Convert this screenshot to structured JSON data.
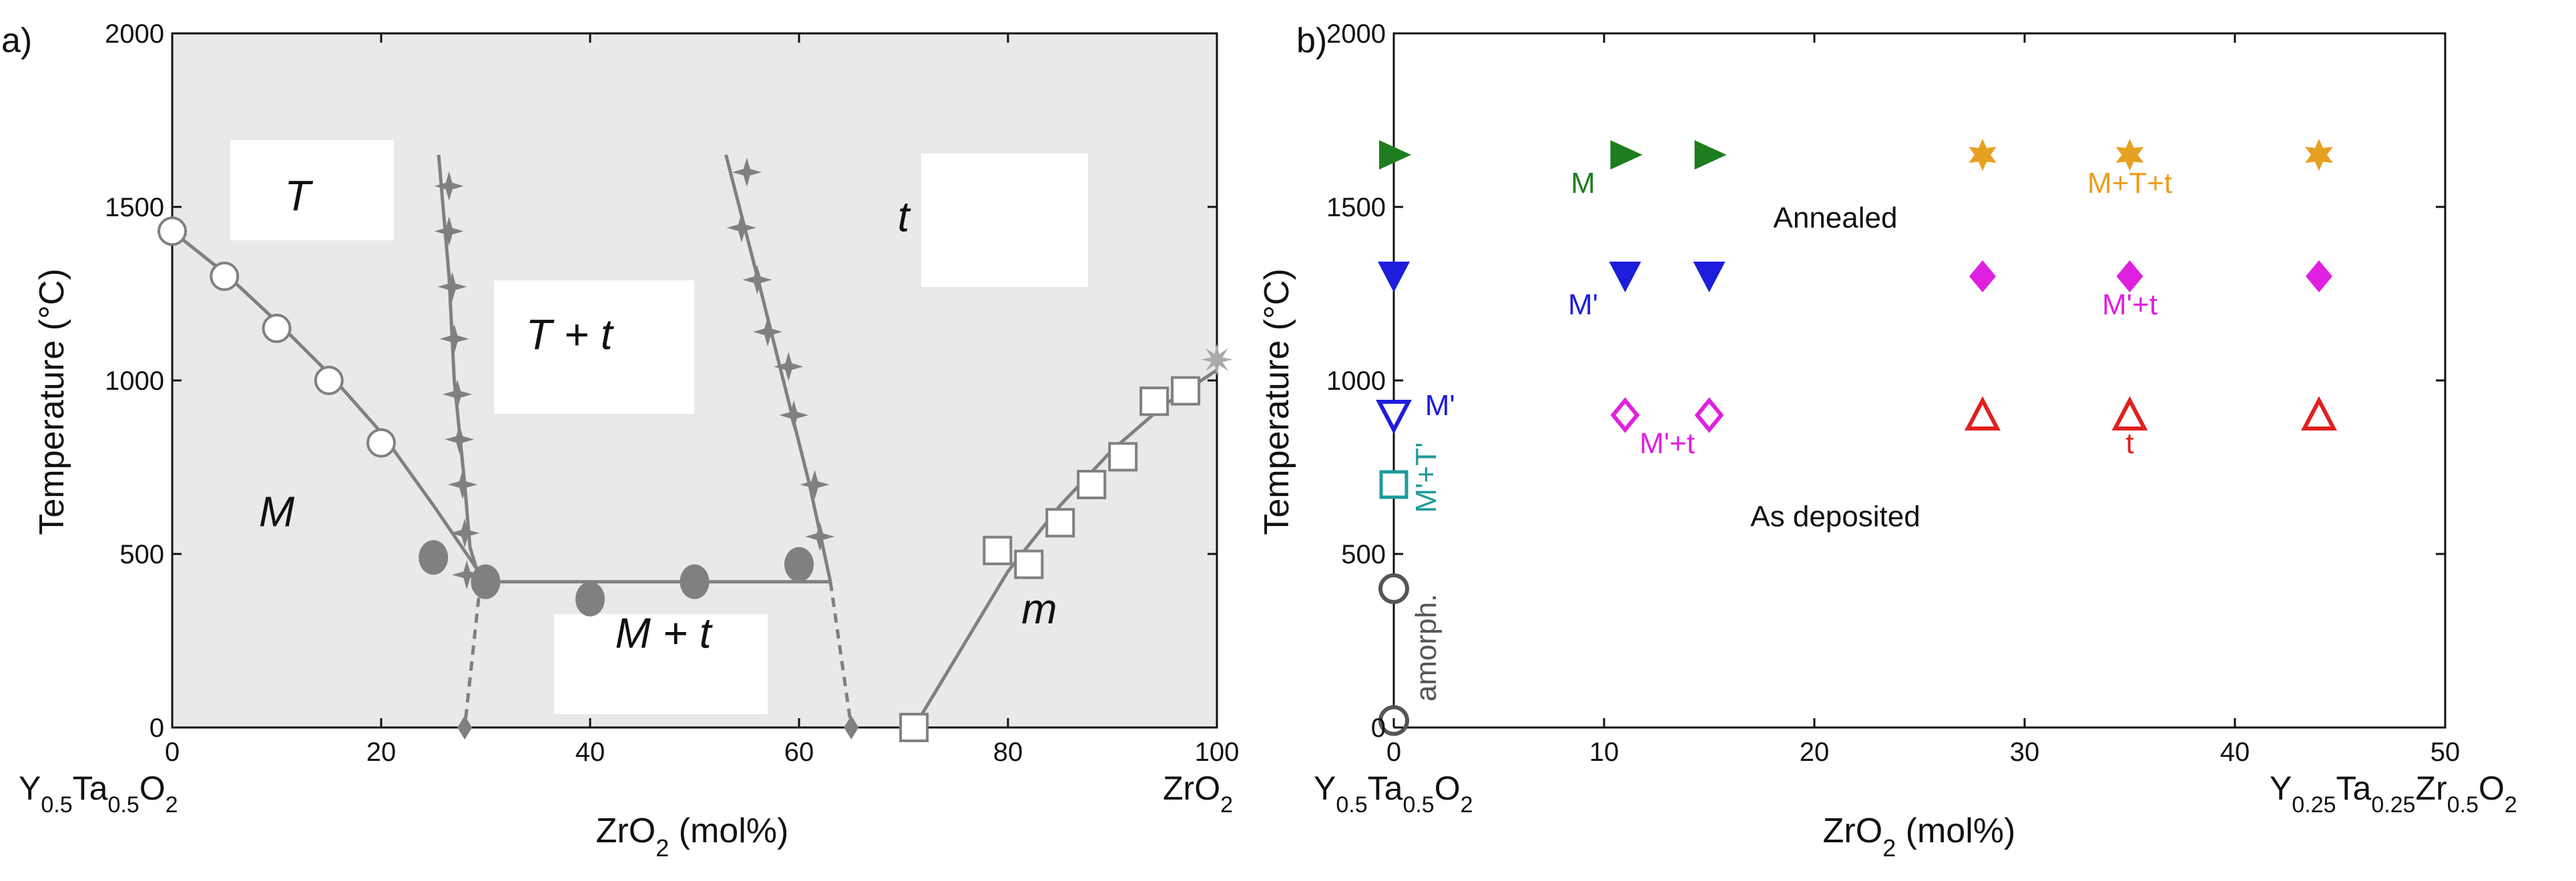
{
  "panel_labels": {
    "a": "a)",
    "b": "b)"
  },
  "colors": {
    "gray": "#808080",
    "green": "#1e7d1e",
    "blue": "#1d1ddb",
    "orange": "#e8a020",
    "magenta": "#e020e0",
    "red": "#e02020",
    "teal": "#1f9a9a",
    "dark": "#555555"
  },
  "chart_data": [
    {
      "type": "scatter",
      "panel": "a)",
      "ylabel": "Temperature (°C)",
      "xlabel_main": "ZrO",
      "xlabel_sub": "2",
      "xlabel_suffix": " (mol%)",
      "xlim": [
        0,
        100
      ],
      "ylim": [
        0,
        2000
      ],
      "xticks": [
        "0",
        "20",
        "40",
        "60",
        "80",
        "100"
      ],
      "yticks": [
        "0",
        "500",
        "1000",
        "1500",
        "2000"
      ],
      "end_left": {
        "parts": [
          [
            "Y",
            ""
          ],
          [
            "0.5",
            "sub"
          ],
          [
            "Ta",
            ""
          ],
          [
            "0.5",
            "sub"
          ],
          [
            "O",
            ""
          ],
          [
            "2",
            "sub"
          ]
        ]
      },
      "end_right": {
        "parts": [
          [
            "ZrO",
            ""
          ],
          [
            "2",
            "sub"
          ]
        ]
      },
      "regions": [
        {
          "label": "T",
          "x": 12,
          "y": 1490
        },
        {
          "label": "T + t",
          "x": 38,
          "y": 1090
        },
        {
          "label": "t",
          "x": 70,
          "y": 1430
        },
        {
          "label": "M",
          "x": 10,
          "y": 580
        },
        {
          "label": "M + t",
          "x": 47,
          "y": 230
        },
        {
          "label": "m",
          "x": 83,
          "y": 300
        }
      ],
      "series": [
        {
          "name": "open circles",
          "marker": "open-circle",
          "points": [
            [
              0,
              1430
            ],
            [
              5,
              1300
            ],
            [
              10,
              1150
            ],
            [
              15,
              1000
            ],
            [
              20,
              820
            ]
          ]
        },
        {
          "name": "filled circles",
          "marker": "filled-circle",
          "points": [
            [
              25,
              490
            ],
            [
              30,
              420
            ],
            [
              40,
              370
            ],
            [
              50,
              420
            ],
            [
              60,
              470
            ]
          ]
        },
        {
          "name": "stars left",
          "marker": "star4",
          "points": [
            [
              26.5,
              1560
            ],
            [
              26.5,
              1430
            ],
            [
              26.8,
              1270
            ],
            [
              27,
              1120
            ],
            [
              27.3,
              960
            ],
            [
              27.5,
              830
            ],
            [
              27.8,
              700
            ],
            [
              28,
              560
            ],
            [
              28.2,
              440
            ]
          ]
        },
        {
          "name": "stars right",
          "marker": "star4",
          "points": [
            [
              55,
              1600
            ],
            [
              54.5,
              1440
            ],
            [
              56,
              1290
            ],
            [
              57,
              1140
            ],
            [
              59,
              1040
            ],
            [
              59.5,
              900
            ],
            [
              61.5,
              700
            ],
            [
              62,
              550
            ]
          ]
        },
        {
          "name": "open squares",
          "marker": "open-square",
          "points": [
            [
              71,
              0
            ],
            [
              79,
              510
            ],
            [
              82,
              470
            ],
            [
              85,
              590
            ],
            [
              88,
              700
            ],
            [
              91,
              780
            ],
            [
              94,
              940
            ],
            [
              97,
              970
            ]
          ]
        },
        {
          "name": "end markers",
          "marker": "diamond-gray",
          "points": [
            [
              28,
              0
            ],
            [
              65,
              0
            ]
          ]
        },
        {
          "name": "zro2 cross",
          "marker": "asterisk-gray",
          "points": [
            [
              100,
              1060
            ]
          ]
        }
      ],
      "lines": [
        {
          "style": "solid",
          "points": [
            [
              0,
              1430
            ],
            [
              5,
              1310
            ],
            [
              10,
              1170
            ],
            [
              15,
              1020
            ],
            [
              20,
              850
            ],
            [
              25,
              640
            ],
            [
              30,
              420
            ]
          ]
        },
        {
          "style": "solid",
          "points": [
            [
              25.5,
              1650
            ],
            [
              26.5,
              1300
            ],
            [
              27,
              1000
            ],
            [
              28,
              700
            ],
            [
              28.5,
              520
            ],
            [
              29.5,
              420
            ]
          ]
        },
        {
          "style": "solid",
          "points": [
            [
              29.5,
              420
            ],
            [
              63,
              420
            ]
          ]
        },
        {
          "style": "solid",
          "points": [
            [
              53,
              1650
            ],
            [
              56,
              1300
            ],
            [
              58.5,
              1000
            ],
            [
              61,
              700
            ],
            [
              63,
              420
            ]
          ]
        },
        {
          "style": "dashed",
          "points": [
            [
              29.5,
              420
            ],
            [
              28,
              0
            ]
          ]
        },
        {
          "style": "dashed",
          "points": [
            [
              63,
              420
            ],
            [
              65,
              0
            ]
          ]
        },
        {
          "style": "solid",
          "points": [
            [
              71,
              0
            ],
            [
              75,
              200
            ],
            [
              80,
              450
            ],
            [
              85,
              640
            ],
            [
              90,
              800
            ],
            [
              95,
              930
            ],
            [
              100,
              1030
            ]
          ]
        }
      ]
    },
    {
      "type": "scatter",
      "panel": "b)",
      "ylabel": "Temperature (°C)",
      "xlabel_main": "ZrO",
      "xlabel_sub": "2",
      "xlabel_suffix": " (mol%)",
      "xlim": [
        0,
        50
      ],
      "ylim": [
        0,
        2000
      ],
      "xticks": [
        "0",
        "10",
        "20",
        "30",
        "40",
        "50"
      ],
      "yticks": [
        "0",
        "500",
        "1000",
        "1500",
        "2000"
      ],
      "end_left": {
        "parts": [
          [
            "Y",
            ""
          ],
          [
            "0.5",
            "sub"
          ],
          [
            "Ta",
            ""
          ],
          [
            "0.5",
            "sub"
          ],
          [
            "O",
            ""
          ],
          [
            "2",
            "sub"
          ]
        ]
      },
      "end_right": {
        "parts": [
          [
            "Y",
            ""
          ],
          [
            "0.25",
            "sub"
          ],
          [
            "Ta",
            ""
          ],
          [
            "0.25",
            "sub"
          ],
          [
            "Zr",
            ""
          ],
          [
            "0.5",
            "sub"
          ],
          [
            "O",
            ""
          ],
          [
            "2",
            "sub"
          ]
        ]
      },
      "series": [
        {
          "name": "annealed M",
          "marker": "tri-right",
          "color": "green",
          "points": [
            [
              0,
              1650
            ],
            [
              11,
              1650
            ],
            [
              15,
              1650
            ]
          ]
        },
        {
          "name": "annealed M+T+t",
          "marker": "star6",
          "color": "orange",
          "points": [
            [
              28,
              1650
            ],
            [
              35,
              1650
            ],
            [
              44,
              1650
            ]
          ]
        },
        {
          "name": "annealed M'",
          "marker": "tri-down",
          "color": "blue",
          "points": [
            [
              0,
              1300
            ],
            [
              11,
              1300
            ],
            [
              15,
              1300
            ]
          ]
        },
        {
          "name": "annealed M'+t",
          "marker": "diamond",
          "color": "magenta",
          "points": [
            [
              28,
              1300
            ],
            [
              35,
              1300
            ],
            [
              44,
              1300
            ]
          ]
        },
        {
          "name": "deposited M'",
          "marker": "tri-down-open",
          "color": "blue",
          "points": [
            [
              0,
              900
            ]
          ]
        },
        {
          "name": "deposited M'+t",
          "marker": "diamond-open",
          "color": "magenta",
          "points": [
            [
              11,
              900
            ],
            [
              15,
              900
            ]
          ]
        },
        {
          "name": "deposited t",
          "marker": "tri-up-open",
          "color": "red",
          "points": [
            [
              28,
              900
            ],
            [
              35,
              900
            ],
            [
              44,
              900
            ]
          ]
        },
        {
          "name": "deposited M'+T'",
          "marker": "square-open",
          "color": "teal",
          "points": [
            [
              0,
              700
            ]
          ]
        },
        {
          "name": "amorph",
          "marker": "circle-open",
          "color": "dark",
          "points": [
            [
              0,
              400
            ],
            [
              0,
              20
            ]
          ]
        }
      ],
      "annotations": [
        {
          "text": "M",
          "x": 9,
          "y": 1540,
          "color": "green"
        },
        {
          "text": "M+T+t",
          "x": 35,
          "y": 1540,
          "color": "orange"
        },
        {
          "text": "Annealed",
          "x": 21,
          "y": 1440,
          "color": "text"
        },
        {
          "text": "M'",
          "x": 9,
          "y": 1190,
          "color": "blue"
        },
        {
          "text": "M'+t",
          "x": 35,
          "y": 1190,
          "color": "magenta"
        },
        {
          "text": "M'",
          "x": 2.2,
          "y": 900,
          "color": "blue"
        },
        {
          "text": "M'+t",
          "x": 13,
          "y": 790,
          "color": "magenta"
        },
        {
          "text": "t",
          "x": 35,
          "y": 790,
          "color": "red"
        },
        {
          "text": "As deposited",
          "x": 21,
          "y": 580,
          "color": "text"
        },
        {
          "text": "M'+T'",
          "x": 2.0,
          "y": 720,
          "color": "teal",
          "rotate": true
        },
        {
          "text": "amorph.",
          "x": 2.0,
          "y": 230,
          "color": "dark",
          "rotate": true
        }
      ]
    }
  ]
}
